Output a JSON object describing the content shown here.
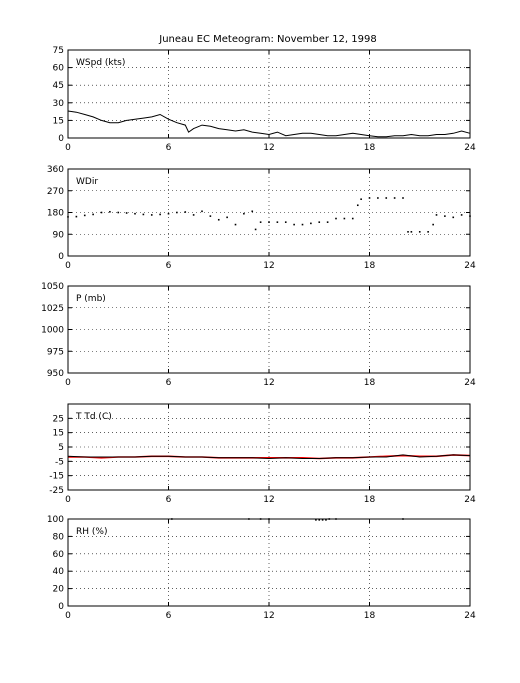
{
  "title": "Juneau EC Meteogram:  November 12, 1998",
  "x_ticks": [
    0,
    6,
    12,
    18,
    24
  ],
  "chart_data": [
    {
      "type": "line",
      "label": "WSpd (kts)",
      "ylim": [
        0,
        75
      ],
      "yticks": [
        0,
        15,
        30,
        45,
        60,
        75
      ],
      "xlim": [
        0,
        24
      ],
      "grid": true,
      "series": [
        {
          "color": "#000000",
          "x": [
            0,
            0.5,
            1,
            1.5,
            2,
            2.5,
            3,
            3.5,
            4,
            4.5,
            5,
            5.5,
            6,
            6.5,
            7,
            7.2,
            7.5,
            8,
            8.5,
            9,
            9.5,
            10,
            10.5,
            11,
            11.5,
            12,
            12.5,
            13,
            13.5,
            14,
            14.5,
            15,
            15.5,
            16,
            16.5,
            17,
            17.5,
            18,
            18.5,
            19,
            19.5,
            20,
            20.5,
            21,
            21.5,
            22,
            22.5,
            23,
            23.5,
            24
          ],
          "y": [
            23,
            22,
            20,
            18,
            15,
            13,
            13,
            15,
            16,
            17,
            18,
            20,
            16,
            13,
            11,
            5,
            8,
            11,
            10,
            8,
            7,
            6,
            7,
            5,
            4,
            3,
            5,
            2,
            3,
            4,
            4,
            3,
            2,
            2,
            3,
            4,
            3,
            2,
            1,
            1,
            2,
            2,
            3,
            2,
            2,
            3,
            3,
            4,
            6,
            4
          ]
        }
      ]
    },
    {
      "type": "scatter",
      "label": "WDir",
      "ylim": [
        0,
        360
      ],
      "yticks": [
        0,
        90,
        180,
        270,
        360
      ],
      "xlim": [
        0,
        24
      ],
      "grid": true,
      "series": [
        {
          "color": "#000000",
          "x": [
            0,
            0.5,
            1,
            1.5,
            2,
            2.5,
            3,
            3.5,
            4,
            4.5,
            5,
            5.5,
            6,
            6.5,
            7,
            7.5,
            8,
            8.5,
            9,
            9.5,
            10,
            10.5,
            11,
            11.2,
            11.5,
            12,
            12.5,
            13,
            13.5,
            14,
            14.5,
            15,
            15.5,
            16,
            16.5,
            17,
            17.3,
            17.5,
            18,
            18.5,
            19,
            19.5,
            20,
            20.3,
            20.5,
            21,
            21.5,
            21.8,
            22,
            22.5,
            23,
            23.5,
            24
          ],
          "y": [
            162,
            163,
            168,
            172,
            180,
            183,
            180,
            178,
            175,
            172,
            170,
            172,
            175,
            180,
            182,
            170,
            185,
            165,
            150,
            160,
            130,
            175,
            185,
            110,
            140,
            140,
            140,
            140,
            130,
            130,
            135,
            140,
            140,
            155,
            155,
            155,
            210,
            235,
            240,
            240,
            240,
            240,
            240,
            100,
            100,
            100,
            100,
            130,
            170,
            165,
            160,
            170,
            165
          ]
        }
      ]
    },
    {
      "type": "line",
      "label": "P (mb)",
      "ylim": [
        950,
        1050
      ],
      "yticks": [
        950,
        975,
        1000,
        1025,
        1050
      ],
      "xlim": [
        0,
        24
      ],
      "grid": true,
      "series": []
    },
    {
      "type": "line",
      "label": "T Td (C)",
      "ylim": [
        -25,
        35
      ],
      "yticks": [
        -25,
        -15,
        -5,
        5,
        15,
        25
      ],
      "xlim": [
        0,
        24
      ],
      "grid": true,
      "series": [
        {
          "color": "#ff0000",
          "x": [
            0,
            1,
            2,
            3,
            4,
            5,
            6,
            7,
            8,
            9,
            10,
            11,
            12,
            13,
            14,
            15,
            16,
            17,
            18,
            19,
            20,
            21,
            22,
            23,
            24
          ],
          "y": [
            -2,
            -2,
            -2.5,
            -2,
            -2,
            -1.5,
            -1.5,
            -2,
            -2,
            -2.5,
            -2.5,
            -2.5,
            -2.5,
            -2.5,
            -2.5,
            -3,
            -2.5,
            -2.5,
            -2,
            -1.5,
            -1,
            -1.5,
            -1.5,
            -0.5,
            -1
          ]
        },
        {
          "color": "#000000",
          "x": [
            0,
            1,
            2,
            3,
            4,
            5,
            6,
            7,
            8,
            9,
            10,
            11,
            12,
            13,
            14,
            15,
            16,
            17,
            18,
            19,
            20,
            21,
            22,
            23,
            24
          ],
          "y": [
            -1.5,
            -2,
            -2,
            -2,
            -2,
            -1.5,
            -1.5,
            -2,
            -2,
            -2.5,
            -2.5,
            -2.5,
            -3,
            -2.5,
            -3,
            -3,
            -2.5,
            -2.5,
            -2,
            -2,
            -0.5,
            -2,
            -1.5,
            -0.5,
            -1
          ]
        }
      ]
    },
    {
      "type": "scatter",
      "label": "RH (%)",
      "ylim": [
        0,
        100
      ],
      "yticks": [
        0,
        20,
        40,
        60,
        80,
        100
      ],
      "xlim": [
        0,
        24
      ],
      "grid": true,
      "series": [
        {
          "color": "#000000",
          "x": [
            6.2,
            10.8,
            11.5,
            12,
            14.8,
            15,
            15.2,
            15.4,
            15.6,
            16,
            20
          ],
          "y": [
            100,
            100,
            100,
            100,
            99,
            99,
            99,
            99,
            100,
            100,
            100
          ]
        }
      ]
    }
  ]
}
